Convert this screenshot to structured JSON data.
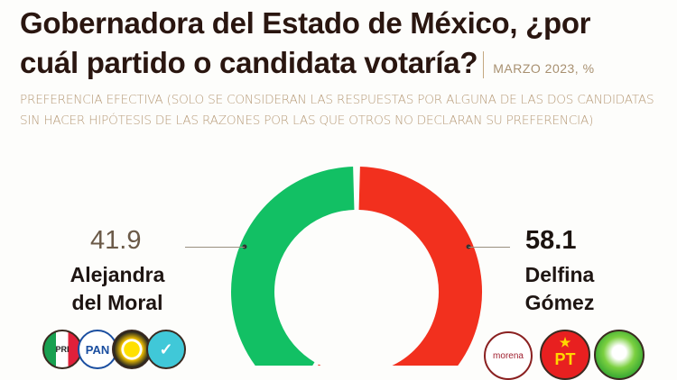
{
  "title": {
    "line1": "Gobernadora del Estado de México, ¿por",
    "line2": "cuál partido o candidata votaría?",
    "date": "MARZO 2023, %"
  },
  "note": "PREFERENCIA EFECTIVA (SOLO SE CONSIDERAN LAS RESPUESTAS POR ALGUNA DE LAS DOS CANDIDATAS SIN HACER HIPÓTESIS DE LAS RAZONES POR LAS QUE OTROS NO DECLARAN SU PREFERENCIA)",
  "chart_data": {
    "type": "pie",
    "donut": true,
    "categories": [
      "Alejandra del Moral",
      "Delfina Gómez"
    ],
    "values": [
      41.9,
      58.1
    ],
    "labels": [
      "41.9",
      "58.1"
    ],
    "colors": [
      "#12c064",
      "#f2301e"
    ]
  },
  "candidates": [
    {
      "value": "41.9",
      "name1": "Alejandra",
      "name2": "del Moral",
      "parties": [
        "PRI",
        "PAN",
        "PRD",
        "Nueva Alianza"
      ]
    },
    {
      "value": "58.1",
      "name1": "Delfina",
      "name2": "Gómez",
      "parties": [
        "morena",
        "PT",
        "PVEM"
      ]
    }
  ]
}
